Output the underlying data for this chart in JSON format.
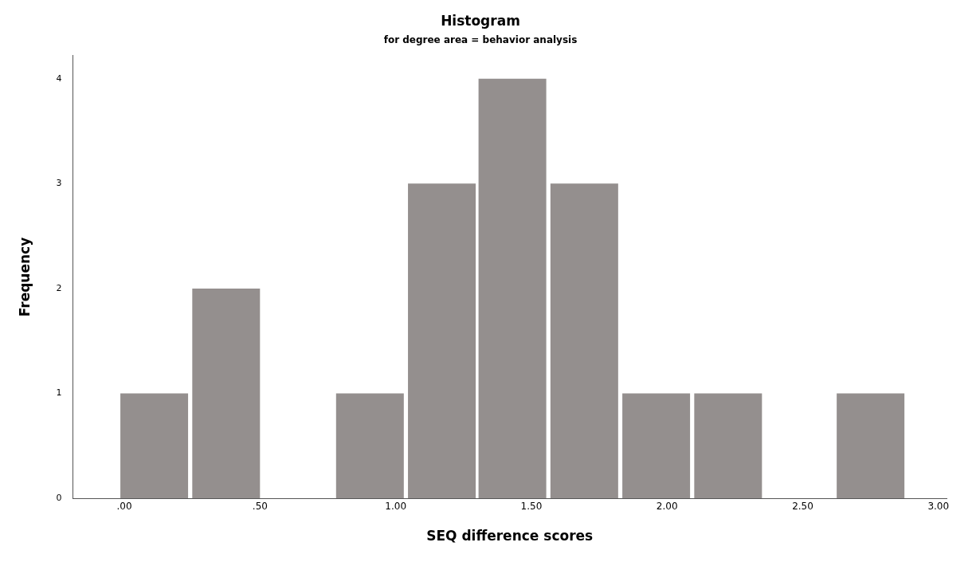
{
  "chart_data": {
    "type": "histogram",
    "title": "Histogram",
    "subtitle": "for degree area = behavior analysis",
    "xlabel": "SEQ difference scores",
    "ylabel": "Frequency",
    "bins": [
      -0.02,
      0.24,
      0.51,
      0.77,
      1.04,
      1.3,
      1.56,
      1.83,
      2.09,
      2.36,
      2.62,
      2.88
    ],
    "values": [
      1,
      2,
      0,
      1,
      3,
      4,
      3,
      1,
      1,
      0,
      1
    ],
    "color": "#948f8e",
    "xlim": [
      -0.19,
      3.03
    ],
    "xticks": [
      {
        "value": 0,
        "label": ".00"
      },
      {
        "value": 0.5,
        "label": ".50"
      },
      {
        "value": 1,
        "label": "1.00"
      },
      {
        "value": 1.5,
        "label": "1.50"
      },
      {
        "value": 2,
        "label": "2.00"
      },
      {
        "value": 2.5,
        "label": "2.50"
      },
      {
        "value": 3,
        "label": "3.00"
      }
    ],
    "ylim": [
      0,
      4.22
    ],
    "yticks": [
      0,
      1,
      2,
      3,
      4
    ],
    "grid": false,
    "legend": false
  }
}
